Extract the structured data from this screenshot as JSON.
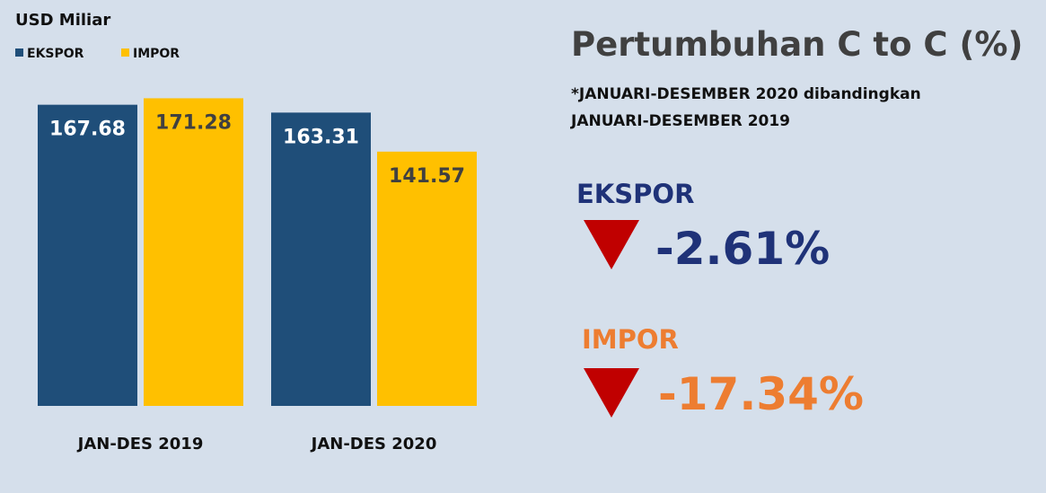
{
  "chart_data": {
    "type": "bar",
    "ylabel": "USD Miliar",
    "categories": [
      "JAN-DES 2019",
      "JAN-DES 2020"
    ],
    "series": [
      {
        "name": "EKSPOR",
        "color": "#1f4e79",
        "values": [
          167.68,
          163.31
        ]
      },
      {
        "name": "IMPOR",
        "color": "#ffc000",
        "values": [
          171.28,
          141.57
        ]
      }
    ]
  },
  "growth": {
    "title": "Pertumbuhan C to C (%)",
    "note": [
      "*JANUARI-DESEMBER 2020 dibandingkan",
      "JANUARI-DESEMBER 2019"
    ],
    "items": [
      {
        "name": "EKSPOR",
        "value": "-2.61%"
      },
      {
        "name": "IMPOR",
        "value": "-17.34%"
      }
    ]
  }
}
